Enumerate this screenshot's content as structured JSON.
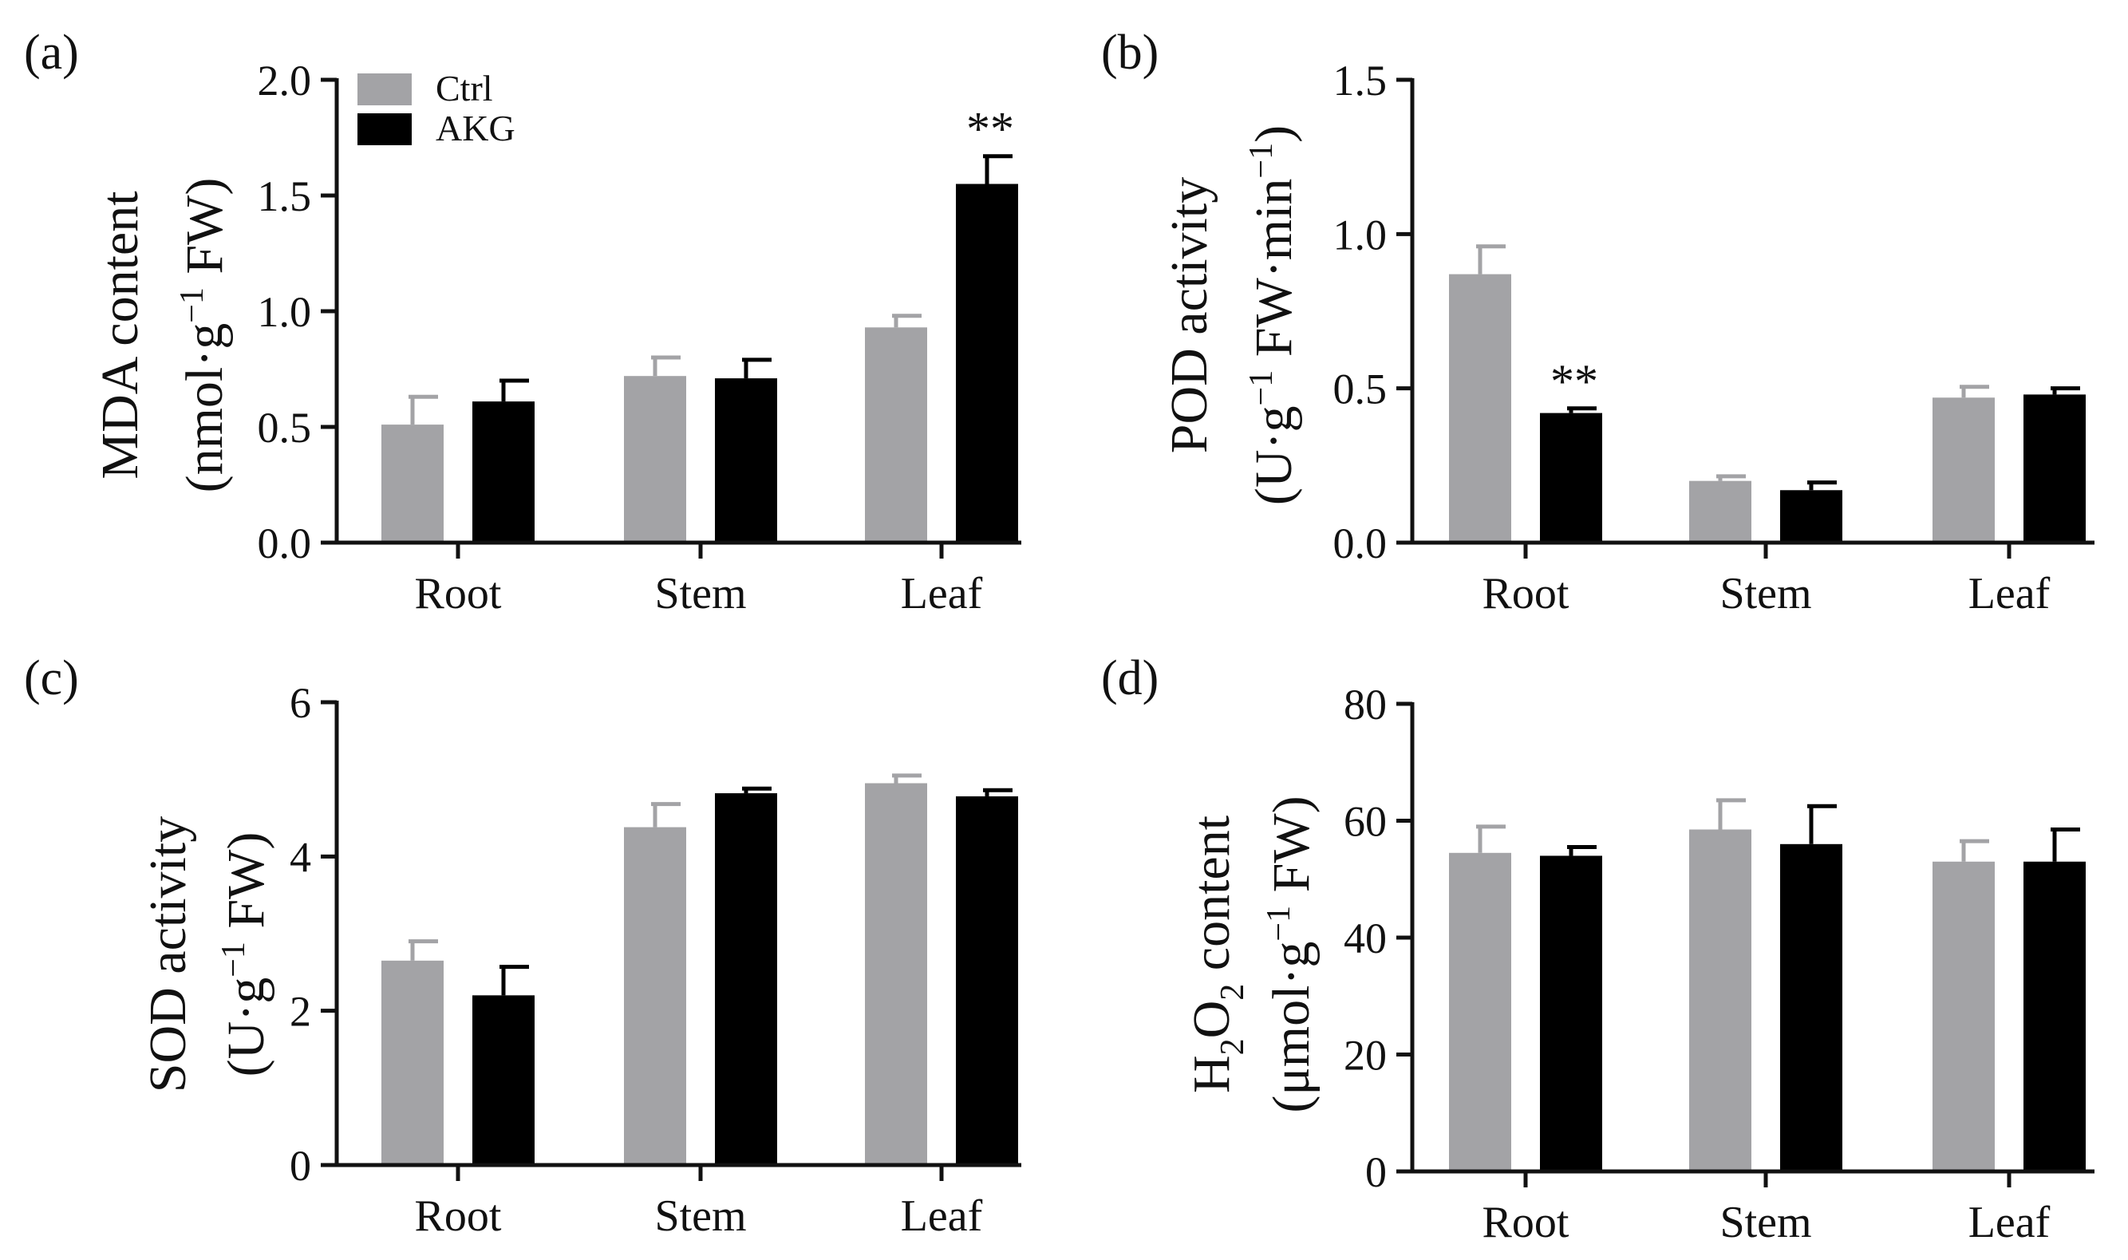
{
  "legend": {
    "items": [
      {
        "label": "Ctrl",
        "color": "#a3a3a6"
      },
      {
        "label": "AKG",
        "color": "#000000"
      }
    ]
  },
  "chart_data": [
    {
      "panel": "(a)",
      "type": "bar",
      "categories": [
        "Root",
        "Stem",
        "Leaf"
      ],
      "series": [
        {
          "name": "Ctrl",
          "color": "#a3a3a6",
          "values": [
            0.51,
            0.72,
            0.93
          ],
          "errors": [
            0.12,
            0.08,
            0.05
          ]
        },
        {
          "name": "AKG",
          "color": "#000000",
          "values": [
            0.61,
            0.71,
            1.55
          ],
          "errors": [
            0.09,
            0.08,
            0.12
          ]
        }
      ],
      "ylabel": {
        "line1": "MDA content",
        "line2_pre": "(nmol·g",
        "line2_sup": "−1",
        "line2_post": " FW)"
      },
      "ylim": [
        0,
        2.0
      ],
      "ticks": [
        "0.0",
        "0.5",
        "1.0",
        "1.5",
        "2.0"
      ],
      "significance": [
        {
          "category": "Leaf",
          "series": "AKG",
          "label": "**"
        }
      ],
      "show_legend": true
    },
    {
      "panel": "(b)",
      "type": "bar",
      "categories": [
        "Root",
        "Stem",
        "Leaf"
      ],
      "series": [
        {
          "name": "Ctrl",
          "color": "#a3a3a6",
          "values": [
            0.87,
            0.2,
            0.47
          ],
          "errors": [
            0.09,
            0.015,
            0.035
          ]
        },
        {
          "name": "AKG",
          "color": "#000000",
          "values": [
            0.42,
            0.17,
            0.48
          ],
          "errors": [
            0.015,
            0.025,
            0.02
          ]
        }
      ],
      "ylabel": {
        "line1": "POD activity",
        "line2_pre": "(U·g",
        "line2_sup": "−1",
        "line2_post": " FW·min",
        "line2_sup2": "−1",
        "line2_end": ")"
      },
      "ylim": [
        0,
        1.5
      ],
      "ticks": [
        "0.0",
        "0.5",
        "1.0",
        "1.5"
      ],
      "significance": [
        {
          "category": "Root",
          "series": "AKG",
          "label": "**"
        }
      ],
      "show_legend": false
    },
    {
      "panel": "(c)",
      "type": "bar",
      "categories": [
        "Root",
        "Stem",
        "Leaf"
      ],
      "series": [
        {
          "name": "Ctrl",
          "color": "#a3a3a6",
          "values": [
            2.65,
            4.38,
            4.95
          ],
          "errors": [
            0.25,
            0.3,
            0.1
          ]
        },
        {
          "name": "AKG",
          "color": "#000000",
          "values": [
            2.2,
            4.82,
            4.78
          ],
          "errors": [
            0.37,
            0.06,
            0.08
          ]
        }
      ],
      "ylabel": {
        "line1": "SOD activity",
        "line2_pre": "(U·g",
        "line2_sup": "−1",
        "line2_post": " FW)"
      },
      "ylim": [
        0,
        6
      ],
      "ticks": [
        "0",
        "2",
        "4",
        "6"
      ],
      "significance": [],
      "show_legend": false
    },
    {
      "panel": "(d)",
      "type": "bar",
      "categories": [
        "Root",
        "Stem",
        "Leaf"
      ],
      "series": [
        {
          "name": "Ctrl",
          "color": "#a3a3a6",
          "values": [
            54.5,
            58.5,
            53
          ],
          "errors": [
            4.5,
            5,
            3.5
          ]
        },
        {
          "name": "AKG",
          "color": "#000000",
          "values": [
            54,
            56,
            53
          ],
          "errors": [
            1.5,
            6.5,
            5.5
          ]
        }
      ],
      "ylabel": {
        "line1_pre": "H",
        "line1_sub": "2",
        "line1_mid": "O",
        "line1_sub2": "2",
        "line1_post": " content",
        "line2_pre": "(μmol·g",
        "line2_sup": "−1",
        "line2_post": " FW)"
      },
      "ylim": [
        0,
        80
      ],
      "ticks": [
        "0",
        "20",
        "40",
        "60",
        "80"
      ],
      "significance": [],
      "show_legend": false
    }
  ]
}
